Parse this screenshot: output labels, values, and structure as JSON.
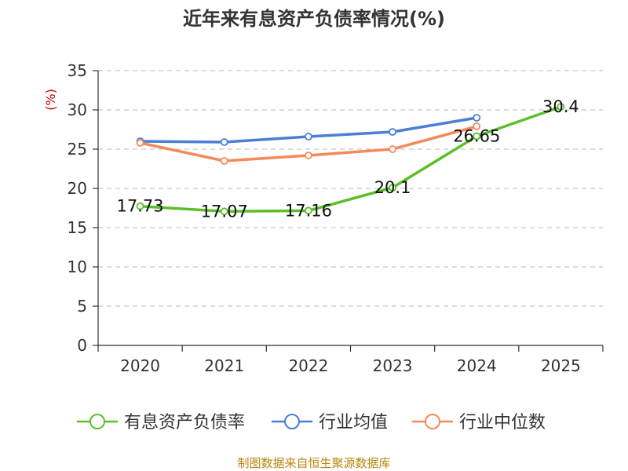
{
  "chart_data": {
    "type": "line",
    "title": "近年来有息资产负债率情况(%)",
    "ylabel": "(%)",
    "xlabel": "",
    "categories": [
      "2020",
      "2021",
      "2022",
      "2023",
      "2024",
      "2025"
    ],
    "ylim": [
      0,
      35
    ],
    "yticks": [
      0,
      5,
      10,
      15,
      20,
      25,
      30,
      35
    ],
    "grid": true,
    "legend_position": "bottom",
    "series": [
      {
        "name": "有息资产负债率",
        "color": "#5cbf2a",
        "values": [
          17.73,
          17.07,
          17.16,
          20.1,
          26.65,
          30.4
        ],
        "labels": [
          "17.73",
          "17.07",
          "17.16",
          "20.1",
          "26.65",
          "30.4"
        ]
      },
      {
        "name": "行业均值",
        "color": "#4a7fd6",
        "values": [
          26.0,
          25.9,
          26.6,
          27.2,
          29.0,
          null
        ]
      },
      {
        "name": "行业中位数",
        "color": "#f5895a",
        "values": [
          25.8,
          23.5,
          24.2,
          25.0,
          27.9,
          null
        ]
      }
    ],
    "source": "制图数据来自恒生聚源数据库"
  }
}
